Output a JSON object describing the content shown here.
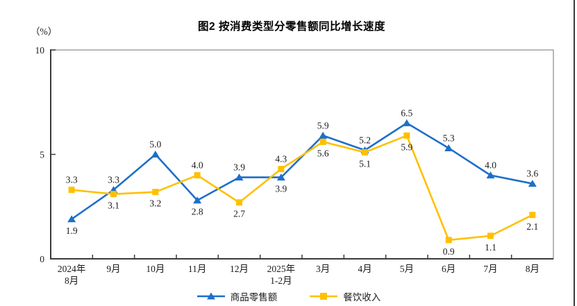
{
  "title": "图2 按消费类型分零售额同比增长速度",
  "unit_label": "（%）",
  "colors": {
    "goods_line": "#1E6FC8",
    "catering_line": "#FFC000",
    "axis_dark": "#3a3a3a",
    "border_gray": "#999999",
    "text": "#1a1a1a"
  },
  "chart_data": {
    "type": "line",
    "title": "图2 按消费类型分零售额同比增长速度",
    "ylabel": "（%）",
    "xlabel": "",
    "ylim": [
      0,
      10
    ],
    "yticks": [
      0,
      5,
      10
    ],
    "grid": false,
    "legend_position": "bottom",
    "categories": [
      "2024年\n8月",
      "9月",
      "10月",
      "11月",
      "12月",
      "2025年\n1-2月",
      "3月",
      "4月",
      "5月",
      "6月",
      "7月",
      "8月"
    ],
    "series": [
      {
        "name": "商品零售额",
        "color": "#1E6FC8",
        "marker": "triangle",
        "values": [
          1.9,
          3.3,
          5.0,
          2.8,
          3.9,
          3.9,
          5.9,
          5.2,
          6.5,
          5.3,
          4.0,
          3.6
        ],
        "label_pos": [
          "below",
          "above",
          "above",
          "below",
          "above",
          "below",
          "above",
          "above",
          "above",
          "above",
          "above",
          "above"
        ]
      },
      {
        "name": "餐饮收入",
        "color": "#FFC000",
        "marker": "square",
        "values": [
          3.3,
          3.1,
          3.2,
          4.0,
          2.7,
          4.3,
          5.6,
          5.1,
          5.9,
          0.9,
          1.1,
          2.1
        ],
        "label_pos": [
          "above",
          "below",
          "below",
          "above",
          "below",
          "above",
          "below",
          "below",
          "below",
          "below",
          "below",
          "below"
        ]
      }
    ]
  }
}
